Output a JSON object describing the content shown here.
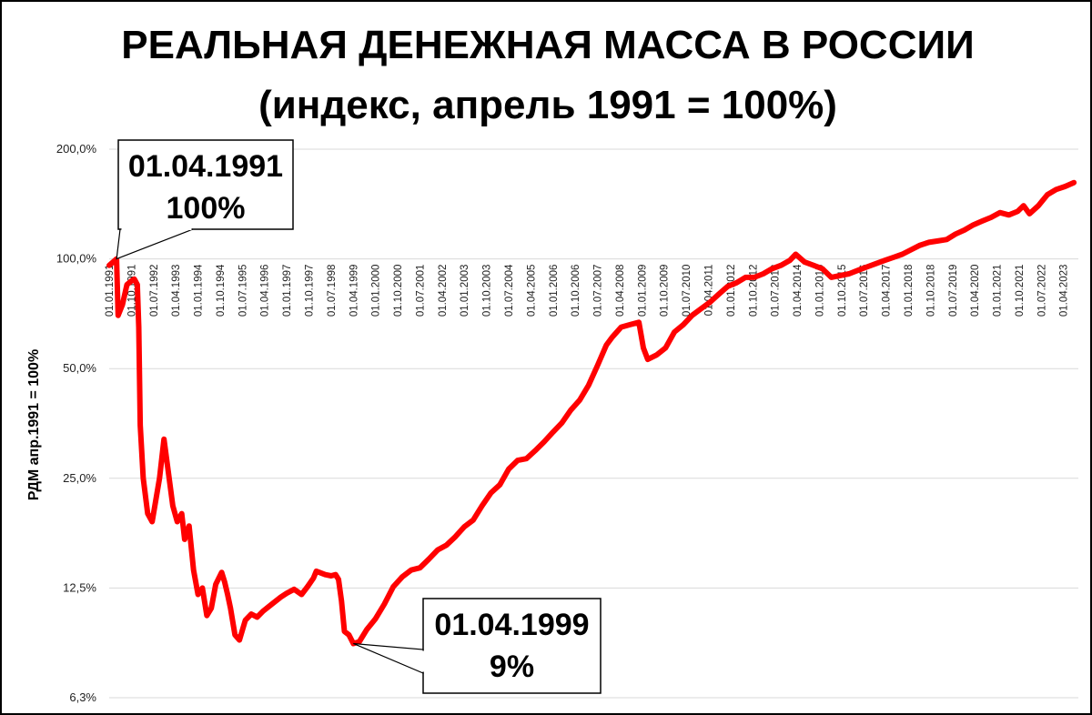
{
  "chart_data": {
    "type": "line",
    "title": "РЕАЛЬНАЯ ДЕНЕЖНАЯ МАССА В РОССИИ",
    "subtitle": "(индекс, апрель 1991 = 100%)",
    "ylabel": "РДМ  апр.1991 = 100%",
    "xlabel": "",
    "y_scale": "log2",
    "ylim": [
      6.25,
      200
    ],
    "y_ticks": [
      {
        "value": 200,
        "label": "200,0%"
      },
      {
        "value": 100,
        "label": "100,0%"
      },
      {
        "value": 50,
        "label": "50,0%"
      },
      {
        "value": 25,
        "label": "25,0%"
      },
      {
        "value": 12.5,
        "label": "12,5%"
      },
      {
        "value": 6.25,
        "label": "6,3%"
      }
    ],
    "grid": true,
    "line_color": "#ff0000",
    "x_tick_labels": [
      "01.01.1991",
      "01.10.1991",
      "01.07.1992",
      "01.04.1993",
      "01.01.1994",
      "01.10.1994",
      "01.07.1995",
      "01.04.1996",
      "01.01.1997",
      "01.10.1997",
      "01.07.1998",
      "01.04.1999",
      "01.01.2000",
      "01.10.2000",
      "01.07.2001",
      "01.04.2002",
      "01.01.2003",
      "01.10.2003",
      "01.07.2004",
      "01.04.2005",
      "01.01.2006",
      "01.10.2006",
      "01.07.2007",
      "01.04.2008",
      "01.01.2009",
      "01.10.2009",
      "01.07.2010",
      "01.04.2011",
      "01.01.2012",
      "01.10.2012",
      "01.07.2013",
      "01.04.2014",
      "01.01.2015",
      "01.10.2015",
      "01.07.2016",
      "01.04.2017",
      "01.01.2018",
      "01.10.2018",
      "01.07.2019",
      "01.04.2020",
      "01.01.2021",
      "01.10.2021",
      "01.07.2022",
      "01.04.2023"
    ],
    "series": [
      {
        "points": [
          [
            1991.0,
            96
          ],
          [
            1991.25,
            100
          ],
          [
            1991.3,
            70
          ],
          [
            1991.45,
            75
          ],
          [
            1991.6,
            85
          ],
          [
            1991.75,
            87
          ],
          [
            1991.85,
            88
          ],
          [
            1991.95,
            85
          ],
          [
            1992.0,
            65
          ],
          [
            1992.05,
            35
          ],
          [
            1992.15,
            25
          ],
          [
            1992.3,
            20
          ],
          [
            1992.45,
            19
          ],
          [
            1992.7,
            25
          ],
          [
            1992.85,
            32
          ],
          [
            1993.0,
            26
          ],
          [
            1993.15,
            21
          ],
          [
            1993.3,
            19
          ],
          [
            1993.45,
            20
          ],
          [
            1993.55,
            17
          ],
          [
            1993.7,
            18.5
          ],
          [
            1993.85,
            14
          ],
          [
            1994.0,
            12
          ],
          [
            1994.15,
            12.5
          ],
          [
            1994.3,
            10.5
          ],
          [
            1994.45,
            11
          ],
          [
            1994.6,
            12.8
          ],
          [
            1994.8,
            13.8
          ],
          [
            1994.9,
            13
          ],
          [
            1995.0,
            12
          ],
          [
            1995.1,
            11
          ],
          [
            1995.25,
            9.3
          ],
          [
            1995.4,
            9.0
          ],
          [
            1995.6,
            10.2
          ],
          [
            1995.8,
            10.6
          ],
          [
            1996.0,
            10.4
          ],
          [
            1996.2,
            10.8
          ],
          [
            1996.5,
            11.3
          ],
          [
            1996.8,
            11.8
          ],
          [
            1997.0,
            12.1
          ],
          [
            1997.25,
            12.4
          ],
          [
            1997.5,
            12.0
          ],
          [
            1997.7,
            12.6
          ],
          [
            1997.9,
            13.3
          ],
          [
            1998.0,
            13.9
          ],
          [
            1998.3,
            13.6
          ],
          [
            1998.5,
            13.5
          ],
          [
            1998.65,
            13.6
          ],
          [
            1998.75,
            13.2
          ],
          [
            1998.85,
            11.5
          ],
          [
            1998.95,
            9.5
          ],
          [
            1999.1,
            9.3
          ],
          [
            1999.25,
            8.8
          ],
          [
            1999.45,
            8.9
          ],
          [
            1999.7,
            9.6
          ],
          [
            2000.0,
            10.3
          ],
          [
            2000.3,
            11.3
          ],
          [
            2000.6,
            12.6
          ],
          [
            2000.9,
            13.4
          ],
          [
            2001.2,
            14.0
          ],
          [
            2001.5,
            14.2
          ],
          [
            2001.8,
            15.0
          ],
          [
            2002.1,
            15.9
          ],
          [
            2002.4,
            16.4
          ],
          [
            2002.7,
            17.3
          ],
          [
            2003.0,
            18.4
          ],
          [
            2003.3,
            19.2
          ],
          [
            2003.6,
            21.0
          ],
          [
            2003.9,
            22.8
          ],
          [
            2004.2,
            24.0
          ],
          [
            2004.5,
            26.5
          ],
          [
            2004.8,
            28.0
          ],
          [
            2005.1,
            28.3
          ],
          [
            2005.4,
            29.8
          ],
          [
            2005.7,
            31.5
          ],
          [
            2006.0,
            33.5
          ],
          [
            2006.3,
            35.5
          ],
          [
            2006.6,
            38.5
          ],
          [
            2006.9,
            41.0
          ],
          [
            2007.2,
            45.0
          ],
          [
            2007.5,
            51.0
          ],
          [
            2007.8,
            58.0
          ],
          [
            2008.0,
            61.0
          ],
          [
            2008.3,
            65.0
          ],
          [
            2008.6,
            66.0
          ],
          [
            2008.9,
            67.0
          ],
          [
            2009.05,
            57.0
          ],
          [
            2009.2,
            53.0
          ],
          [
            2009.5,
            54.5
          ],
          [
            2009.8,
            57.0
          ],
          [
            2010.1,
            63.0
          ],
          [
            2010.4,
            66.0
          ],
          [
            2010.7,
            70.0
          ],
          [
            2011.0,
            73.0
          ],
          [
            2011.3,
            76.0
          ],
          [
            2011.6,
            80.0
          ],
          [
            2011.9,
            84.0
          ],
          [
            2012.2,
            86.0
          ],
          [
            2012.5,
            89.0
          ],
          [
            2012.8,
            89.0
          ],
          [
            2013.1,
            91.0
          ],
          [
            2013.4,
            94.0
          ],
          [
            2013.7,
            96.0
          ],
          [
            2014.0,
            99.0
          ],
          [
            2014.2,
            103.0
          ],
          [
            2014.5,
            98.0
          ],
          [
            2014.8,
            96.0
          ],
          [
            2015.1,
            94.0
          ],
          [
            2015.4,
            89.0
          ],
          [
            2015.7,
            90.0
          ],
          [
            2016.0,
            91.0
          ],
          [
            2016.3,
            93.0
          ],
          [
            2016.6,
            95.0
          ],
          [
            2016.9,
            97.0
          ],
          [
            2017.2,
            99.0
          ],
          [
            2017.5,
            101.0
          ],
          [
            2017.8,
            103.0
          ],
          [
            2018.1,
            106.0
          ],
          [
            2018.4,
            109.0
          ],
          [
            2018.7,
            111.0
          ],
          [
            2019.0,
            112.0
          ],
          [
            2019.3,
            113.0
          ],
          [
            2019.6,
            117.0
          ],
          [
            2019.9,
            120.0
          ],
          [
            2020.2,
            124.0
          ],
          [
            2020.5,
            127.0
          ],
          [
            2020.8,
            130.0
          ],
          [
            2021.1,
            134.0
          ],
          [
            2021.4,
            132.0
          ],
          [
            2021.7,
            135.0
          ],
          [
            2021.9,
            140.0
          ],
          [
            2022.1,
            133.0
          ],
          [
            2022.4,
            140.0
          ],
          [
            2022.7,
            150.0
          ],
          [
            2023.0,
            155.0
          ],
          [
            2023.3,
            158.0
          ],
          [
            2023.6,
            162.0
          ]
        ]
      }
    ],
    "annotations": [
      {
        "line1": "01.04.1991",
        "line2": "100%",
        "x": 1991.25,
        "y": 100
      },
      {
        "line1": "01.04.1999",
        "line2": "9%",
        "x": 1999.25,
        "y": 8.8
      }
    ]
  }
}
